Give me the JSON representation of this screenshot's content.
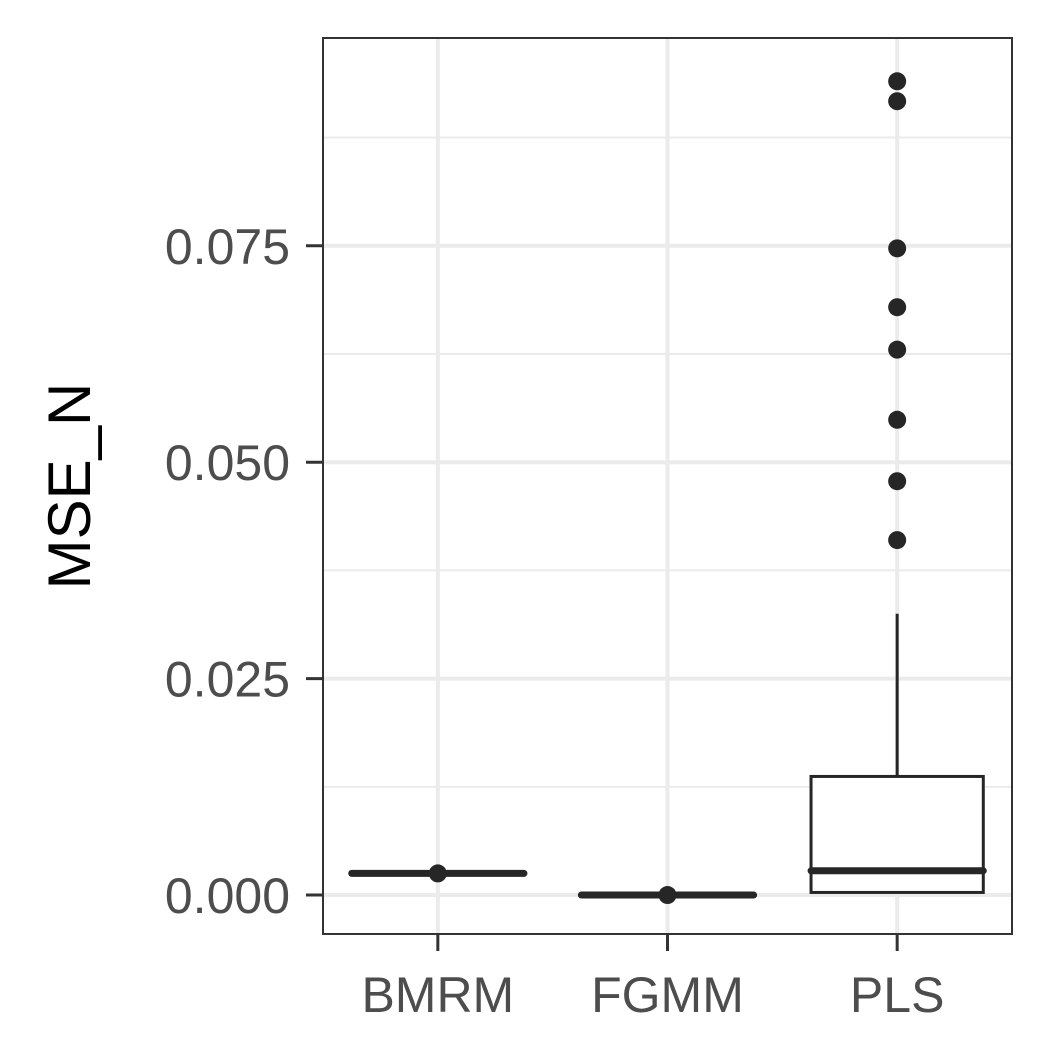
{
  "chart_data": {
    "type": "box",
    "title": "",
    "xlabel": "",
    "ylabel": "MSE_N",
    "ylim": [
      -0.0045,
      0.099
    ],
    "yticks": [
      0.0,
      0.025,
      0.05,
      0.075
    ],
    "ytick_labels": [
      "0.000",
      "0.025",
      "0.050",
      "0.075"
    ],
    "minor_yticks": [
      0.0125,
      0.0375,
      0.0625,
      0.0875
    ],
    "grid": true,
    "categories": [
      "BMRM",
      "FGMM",
      "PLS"
    ],
    "boxes": [
      {
        "name": "BMRM",
        "min": 0.0025,
        "q1": 0.0025,
        "median": 0.0025,
        "q3": 0.0025,
        "max": 0.0025,
        "outliers": [
          0.0025
        ]
      },
      {
        "name": "FGMM",
        "min": 0.0,
        "q1": 0.0,
        "median": 0.0,
        "q3": 0.0,
        "max": 0.0,
        "outliers": [
          0.0
        ]
      },
      {
        "name": "PLS",
        "min": 0.0003,
        "q1": 0.0003,
        "median": 0.0028,
        "q3": 0.0137,
        "max": 0.0325,
        "outliers": [
          0.041,
          0.0478,
          0.0549,
          0.063,
          0.0679,
          0.0747,
          0.0917,
          0.094
        ]
      }
    ],
    "colors": {
      "box_stroke": "#262626",
      "grid": "#ebebeb",
      "panel_border": "#333333",
      "tick_text": "#4d4d4d"
    }
  }
}
